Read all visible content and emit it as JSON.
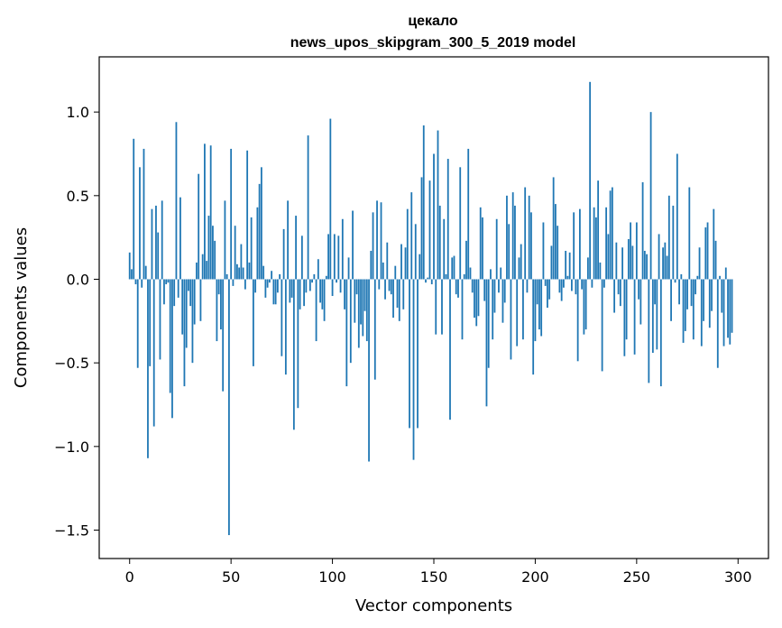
{
  "chart_data": {
    "type": "bar",
    "title_lines": [
      "цекало",
      "news_upos_skipgram_300_5_2019 model"
    ],
    "xlabel": "Vector components",
    "ylabel": "Components values",
    "xlim": [
      -15,
      315
    ],
    "ylim": [
      -1.67,
      1.33
    ],
    "xticks": [
      0,
      50,
      100,
      150,
      200,
      250,
      300
    ],
    "yticks": [
      1.0,
      0.5,
      0.0,
      -0.5,
      -1.0,
      -1.5
    ],
    "ytick_labels": [
      "1.0",
      "0.5",
      "0.0",
      "−0.5",
      "−1.0",
      "−1.5"
    ],
    "bar_color": "#1f77b4",
    "values": [
      0.16,
      0.06,
      0.84,
      -0.03,
      -0.53,
      0.67,
      -0.05,
      0.78,
      0.08,
      -1.07,
      -0.52,
      0.42,
      -0.88,
      0.44,
      0.28,
      -0.48,
      0.47,
      -0.15,
      -0.03,
      -0.02,
      -0.68,
      -0.83,
      -0.16,
      0.94,
      -0.11,
      0.49,
      -0.33,
      -0.64,
      -0.41,
      -0.07,
      -0.16,
      -0.5,
      -0.27,
      0.1,
      0.63,
      -0.25,
      0.15,
      0.81,
      0.11,
      0.38,
      0.8,
      0.32,
      0.23,
      -0.37,
      -0.09,
      -0.3,
      -0.67,
      0.47,
      0.03,
      -1.53,
      0.78,
      -0.04,
      0.32,
      0.09,
      0.07,
      0.21,
      0.07,
      -0.06,
      0.77,
      0.1,
      0.37,
      -0.52,
      -0.08,
      0.43,
      0.57,
      0.67,
      0.08,
      -0.11,
      -0.05,
      -0.02,
      0.05,
      -0.15,
      -0.15,
      -0.08,
      0.03,
      -0.46,
      0.3,
      -0.57,
      0.47,
      -0.14,
      -0.11,
      -0.9,
      0.38,
      -0.77,
      -0.18,
      0.26,
      -0.16,
      -0.08,
      0.86,
      -0.07,
      -0.02,
      0.03,
      -0.37,
      0.12,
      -0.14,
      -0.18,
      -0.25,
      0.02,
      0.27,
      0.96,
      -0.1,
      0.27,
      -0.02,
      0.26,
      -0.08,
      0.36,
      -0.18,
      -0.64,
      0.13,
      -0.5,
      0.41,
      -0.26,
      -0.09,
      -0.41,
      -0.27,
      -0.34,
      -0.19,
      -0.37,
      -1.09,
      0.17,
      0.4,
      -0.6,
      0.47,
      -0.06,
      0.46,
      0.1,
      -0.12,
      0.22,
      -0.07,
      -0.09,
      -0.23,
      0.08,
      -0.17,
      -0.25,
      0.21,
      -0.18,
      0.19,
      0.42,
      -0.89,
      0.52,
      -1.08,
      0.33,
      -0.89,
      0.15,
      0.61,
      0.92,
      -0.02,
      0.01,
      0.59,
      -0.03,
      0.75,
      -0.33,
      0.89,
      0.44,
      -0.33,
      0.36,
      0.03,
      0.72,
      -0.84,
      0.13,
      0.14,
      -0.09,
      -0.11,
      0.67,
      -0.36,
      0.03,
      0.23,
      0.78,
      0.07,
      -0.08,
      -0.23,
      -0.28,
      -0.22,
      0.43,
      0.37,
      -0.13,
      -0.76,
      -0.53,
      0.06,
      -0.36,
      -0.2,
      0.36,
      -0.08,
      0.07,
      -0.26,
      -0.14,
      0.5,
      0.33,
      -0.48,
      0.52,
      0.44,
      -0.4,
      0.13,
      0.21,
      -0.36,
      0.55,
      -0.08,
      0.5,
      0.4,
      -0.57,
      -0.37,
      -0.15,
      -0.3,
      -0.34,
      0.34,
      -0.04,
      -0.17,
      -0.12,
      0.2,
      0.61,
      0.45,
      0.32,
      -0.08,
      -0.13,
      -0.05,
      0.17,
      0.02,
      0.16,
      -0.07,
      0.4,
      -0.09,
      -0.49,
      0.42,
      -0.06,
      -0.33,
      -0.3,
      0.13,
      1.18,
      -0.05,
      0.43,
      0.37,
      0.59,
      0.1,
      -0.55,
      -0.05,
      0.43,
      0.27,
      0.53,
      0.55,
      -0.2,
      0.22,
      -0.09,
      -0.16,
      0.19,
      -0.46,
      -0.36,
      0.24,
      0.34,
      0.2,
      -0.45,
      0.34,
      -0.12,
      -0.27,
      0.58,
      0.17,
      0.15,
      -0.62,
      1.0,
      -0.44,
      -0.15,
      -0.42,
      0.27,
      -0.64,
      0.19,
      0.22,
      0.14,
      0.5,
      -0.25,
      0.44,
      -0.02,
      0.75,
      -0.15,
      0.03,
      -0.38,
      -0.31,
      -0.18,
      0.55,
      -0.16,
      -0.36,
      -0.09,
      0.02,
      0.19,
      -0.4,
      -0.25,
      0.31,
      0.34,
      -0.29,
      -0.19,
      0.42,
      0.23,
      -0.53,
      0.02,
      -0.2,
      -0.4,
      0.07,
      -0.35,
      -0.39,
      -0.32
    ]
  }
}
